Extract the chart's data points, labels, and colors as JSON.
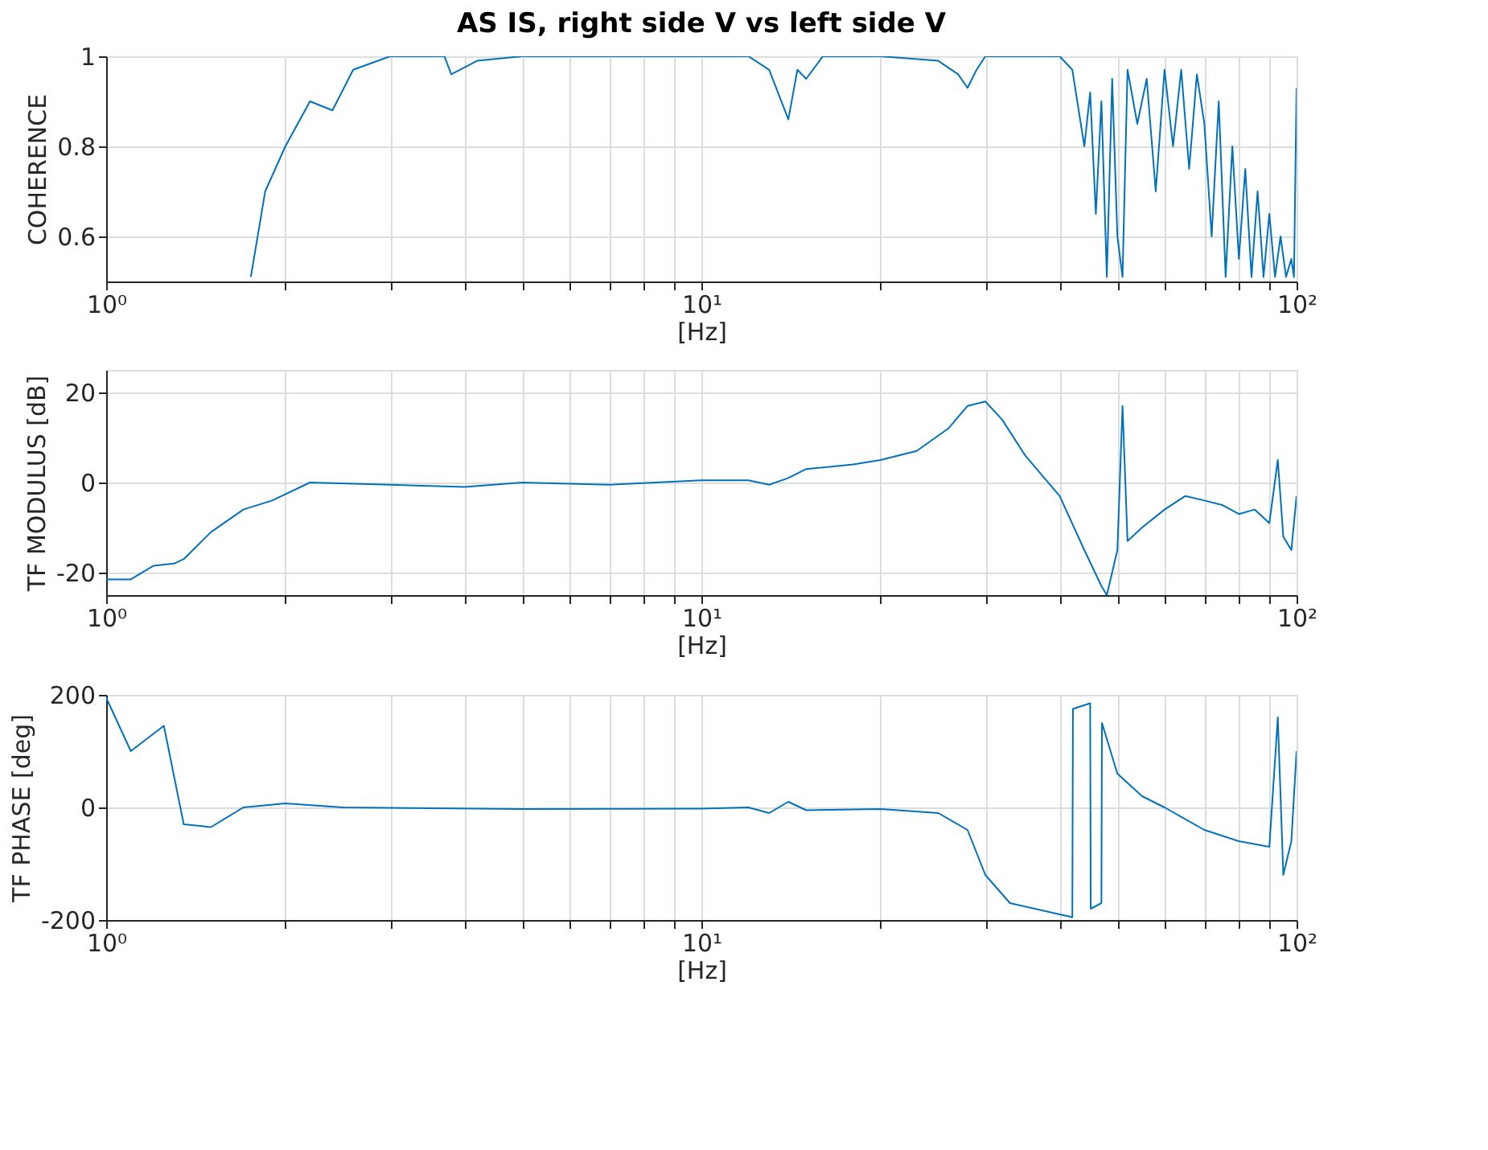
{
  "chart_data": [
    {
      "type": "line",
      "title": "AS IS, right side V vs left side V",
      "xlabel": "[Hz]",
      "ylabel": "COHERENCE",
      "log": "x",
      "grid": true,
      "xlim": [
        1,
        100
      ],
      "ylim": [
        0.5,
        1
      ],
      "yticks": [
        0.6,
        0.8,
        1
      ],
      "xticks": [
        {
          "value": 1,
          "label": "10⁰"
        },
        {
          "value": 2,
          "label": null
        },
        {
          "value": 3,
          "label": null
        },
        {
          "value": 4,
          "label": null
        },
        {
          "value": 5,
          "label": null
        },
        {
          "value": 6,
          "label": null
        },
        {
          "value": 7,
          "label": null
        },
        {
          "value": 8,
          "label": null
        },
        {
          "value": 9,
          "label": null
        },
        {
          "value": 10,
          "label": "10¹"
        },
        {
          "value": 20,
          "label": null
        },
        {
          "value": 30,
          "label": null
        },
        {
          "value": 40,
          "label": null
        },
        {
          "value": 50,
          "label": null
        },
        {
          "value": 60,
          "label": null
        },
        {
          "value": 70,
          "label": null
        },
        {
          "value": 80,
          "label": null
        },
        {
          "value": 90,
          "label": null
        },
        {
          "value": 100,
          "label": "10²"
        }
      ],
      "series": [
        {
          "color": "#0072bd",
          "x": [
            1.75,
            1.85,
            2.0,
            2.2,
            2.4,
            2.6,
            3.0,
            3.7,
            3.8,
            4.2,
            5,
            8,
            12,
            13,
            14,
            14.5,
            15,
            16,
            20,
            25,
            27,
            28,
            29,
            30,
            40,
            42,
            44,
            45,
            46,
            47,
            48,
            49,
            50,
            51,
            52,
            54,
            56,
            58,
            60,
            62,
            64,
            66,
            68,
            70,
            72,
            74,
            76,
            78,
            80,
            82,
            84,
            86,
            88,
            90,
            92,
            94,
            96,
            98,
            99,
            100
          ],
          "values": [
            0.51,
            0.7,
            0.8,
            0.9,
            0.88,
            0.97,
            1.0,
            1.0,
            0.96,
            0.99,
            1.0,
            1.0,
            1.0,
            0.97,
            0.86,
            0.97,
            0.95,
            1.0,
            1.0,
            0.99,
            0.96,
            0.93,
            0.97,
            1.0,
            1.0,
            0.97,
            0.8,
            0.92,
            0.65,
            0.9,
            0.51,
            0.95,
            0.6,
            0.51,
            0.97,
            0.85,
            0.95,
            0.7,
            0.97,
            0.8,
            0.97,
            0.75,
            0.96,
            0.85,
            0.6,
            0.9,
            0.51,
            0.8,
            0.55,
            0.75,
            0.51,
            0.7,
            0.51,
            0.65,
            0.51,
            0.6,
            0.51,
            0.55,
            0.51,
            0.93
          ]
        }
      ]
    },
    {
      "type": "line",
      "xlabel": "[Hz]",
      "ylabel": "TF MODULUS [dB]",
      "log": "x",
      "grid": true,
      "xlim": [
        1,
        100
      ],
      "ylim": [
        -25,
        25
      ],
      "yticks": [
        -20,
        0,
        20
      ],
      "xticks": [
        {
          "value": 1,
          "label": "10⁰"
        },
        {
          "value": 2,
          "label": null
        },
        {
          "value": 3,
          "label": null
        },
        {
          "value": 4,
          "label": null
        },
        {
          "value": 5,
          "label": null
        },
        {
          "value": 6,
          "label": null
        },
        {
          "value": 7,
          "label": null
        },
        {
          "value": 8,
          "label": null
        },
        {
          "value": 9,
          "label": null
        },
        {
          "value": 10,
          "label": "10¹"
        },
        {
          "value": 20,
          "label": null
        },
        {
          "value": 30,
          "label": null
        },
        {
          "value": 40,
          "label": null
        },
        {
          "value": 50,
          "label": null
        },
        {
          "value": 60,
          "label": null
        },
        {
          "value": 70,
          "label": null
        },
        {
          "value": 80,
          "label": null
        },
        {
          "value": 90,
          "label": null
        },
        {
          "value": 100,
          "label": "10²"
        }
      ],
      "series": [
        {
          "color": "#0072bd",
          "x": [
            1.0,
            1.1,
            1.2,
            1.3,
            1.35,
            1.5,
            1.7,
            1.9,
            2.2,
            3,
            4,
            5,
            7,
            10,
            12,
            13,
            14,
            15,
            18,
            20,
            23,
            26,
            28,
            30,
            32,
            35,
            40,
            44,
            47,
            48,
            50,
            51,
            52,
            55,
            60,
            65,
            70,
            75,
            80,
            85,
            90,
            93,
            95,
            98,
            100
          ],
          "values": [
            -21.5,
            -21.5,
            -18.5,
            -18,
            -17,
            -11,
            -6,
            -4,
            0,
            -0.5,
            -1,
            0,
            -0.5,
            0.5,
            0.5,
            -0.5,
            1,
            3,
            4,
            5,
            7,
            12,
            17,
            18,
            14,
            6,
            -3,
            -15,
            -23,
            -25,
            -15,
            17,
            -13,
            -10,
            -6,
            -3,
            -4,
            -5,
            -7,
            -6,
            -9,
            5,
            -12,
            -15,
            -3
          ]
        }
      ]
    },
    {
      "type": "line",
      "xlabel": "[Hz]",
      "ylabel": "TF PHASE [deg]",
      "log": "x",
      "grid": true,
      "xlim": [
        1,
        100
      ],
      "ylim": [
        -200,
        200
      ],
      "yticks": [
        -200,
        0,
        200
      ],
      "xticks": [
        {
          "value": 1,
          "label": "10⁰"
        },
        {
          "value": 2,
          "label": null
        },
        {
          "value": 3,
          "label": null
        },
        {
          "value": 4,
          "label": null
        },
        {
          "value": 5,
          "label": null
        },
        {
          "value": 6,
          "label": null
        },
        {
          "value": 7,
          "label": null
        },
        {
          "value": 8,
          "label": null
        },
        {
          "value": 9,
          "label": null
        },
        {
          "value": 10,
          "label": "10¹"
        },
        {
          "value": 20,
          "label": null
        },
        {
          "value": 30,
          "label": null
        },
        {
          "value": 40,
          "label": null
        },
        {
          "value": 50,
          "label": null
        },
        {
          "value": 60,
          "label": null
        },
        {
          "value": 70,
          "label": null
        },
        {
          "value": 80,
          "label": null
        },
        {
          "value": 90,
          "label": null
        },
        {
          "value": 100,
          "label": "10²"
        }
      ],
      "series": [
        {
          "color": "#0072bd",
          "x": [
            1.0,
            1.1,
            1.25,
            1.35,
            1.5,
            1.7,
            2,
            2.5,
            5,
            10,
            12,
            13,
            14,
            15,
            20,
            25,
            28,
            30,
            33,
            40,
            42,
            42.1,
            45,
            45.1,
            47,
            47.1,
            50,
            55,
            60,
            70,
            80,
            90,
            93,
            95,
            98,
            100
          ],
          "values": [
            195,
            100,
            145,
            -30,
            -35,
            0,
            7,
            0,
            -3,
            -2,
            0,
            -10,
            10,
            -5,
            -3,
            -10,
            -40,
            -120,
            -170,
            -190,
            -195,
            175,
            185,
            -180,
            -170,
            150,
            60,
            20,
            0,
            -40,
            -60,
            -70,
            160,
            -120,
            -60,
            100
          ]
        }
      ]
    }
  ]
}
